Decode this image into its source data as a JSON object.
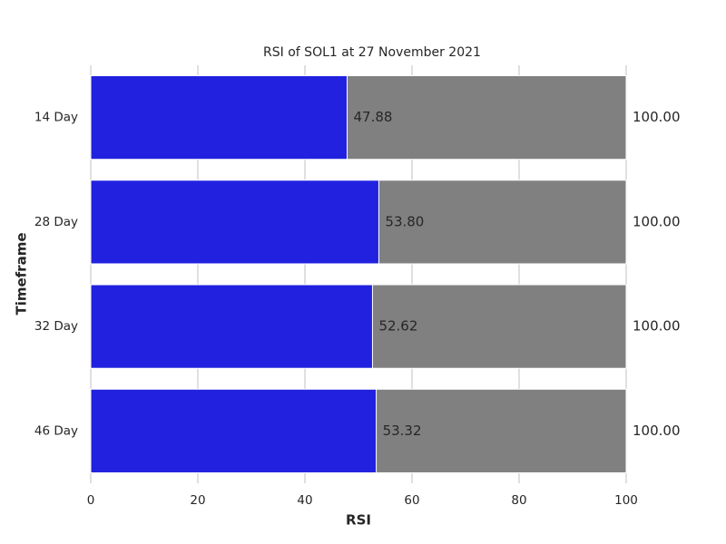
{
  "chart_data": {
    "type": "bar",
    "orientation": "horizontal",
    "barmode": "overlay",
    "title": "RSI of SOL1 at 27 November 2021",
    "x_label": "RSI",
    "y_label": "Timeframe",
    "categories": [
      "14 Day",
      "28 Day",
      "32 Day",
      "46 Day"
    ],
    "series": [
      {
        "color": "#808080",
        "values": [
          100,
          100,
          100,
          100
        ],
        "value_labels": [
          "100.00",
          "100.00",
          "100.00",
          "100.00"
        ]
      },
      {
        "color": "#2121df",
        "values": [
          47.88,
          53.8,
          52.62,
          53.32
        ],
        "value_labels": [
          "47.88",
          "53.80",
          "52.62",
          "53.32"
        ]
      }
    ],
    "xlim": [
      0,
      100
    ],
    "xticks": [
      0,
      20,
      40,
      60,
      80,
      100
    ],
    "grid": true
  }
}
